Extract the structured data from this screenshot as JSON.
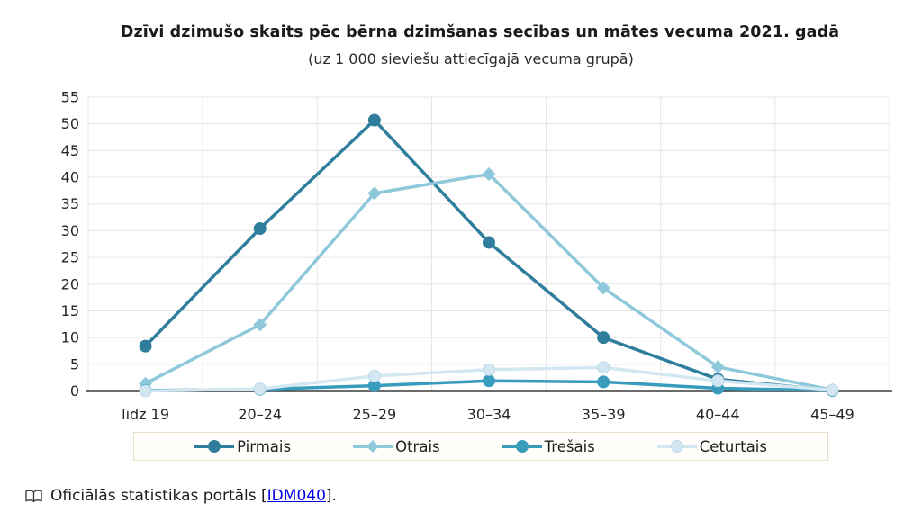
{
  "title": "Dzīvi dzimušo skaits pēc bērna dzimšanas secības un mātes vecuma 2021. gadā",
  "subtitle": "(uz 1 000 sieviešu attiecīgajā vecuma grupā)",
  "source": {
    "label": "Oficiālās statistikas portāls",
    "bracket_open": "[",
    "link": "IDM040",
    "bracket_close": "].",
    "icon": "open-book-icon"
  },
  "style": {
    "grid_color": "#e5e5e5",
    "axis_color": "#3a3a3a",
    "tick_label_color": "#262626",
    "link_color": "#0000e6",
    "legend_border_color": "#e8dfca"
  },
  "chart_data": {
    "type": "line",
    "title": "Dzīvi dzimušo skaits pēc bērna dzimšanas secības un mātes vecuma 2021. gadā",
    "subtitle": "(uz 1 000 sieviešu attiecīgajā vecuma grupā)",
    "categories": [
      "līdz 19",
      "20–24",
      "25–29",
      "30–34",
      "35–39",
      "40–44",
      "45–49"
    ],
    "yticks": [
      0,
      5,
      10,
      15,
      20,
      25,
      30,
      35,
      40,
      45,
      50,
      55
    ],
    "ylim": [
      0,
      55
    ],
    "ytick_step": 5,
    "grid": true,
    "legend_position": "bottom",
    "series": [
      {
        "name": "Pirmais",
        "color": "#2f7e9d",
        "marker": "circle",
        "values": [
          8.4,
          30.4,
          50.7,
          27.8,
          10.0,
          2.2,
          0.1
        ]
      },
      {
        "name": "Otrais",
        "color": "#8ec8db",
        "marker": "diamond",
        "values": [
          1.4,
          12.4,
          37.0,
          40.6,
          19.3,
          4.5,
          0.2
        ]
      },
      {
        "name": "Trešais",
        "color": "#399cbc",
        "marker": "circle",
        "values": [
          0.1,
          0.3,
          1.0,
          1.9,
          1.7,
          0.5,
          0.1
        ]
      },
      {
        "name": "Ceturtais",
        "color": "#d2e7f1",
        "marker": "circle",
        "values": [
          0.0,
          0.4,
          2.8,
          4.0,
          4.4,
          1.9,
          0.2
        ]
      }
    ]
  }
}
